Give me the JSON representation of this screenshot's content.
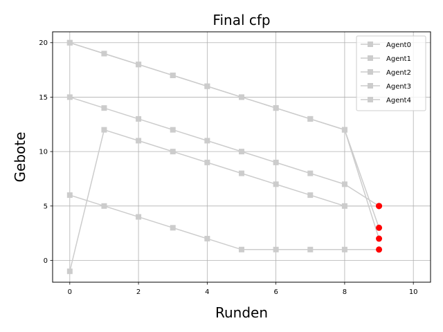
{
  "chart_data": {
    "type": "line",
    "title": "Final cfp",
    "xlabel": "Runden",
    "ylabel": "Gebote",
    "xlim": [
      -0.5,
      10.5
    ],
    "ylim": [
      -2,
      21
    ],
    "xticks": [
      0,
      2,
      4,
      6,
      8,
      10
    ],
    "yticks": [
      0,
      5,
      10,
      15,
      20
    ],
    "grid": true,
    "legend_position": "top-right",
    "line_color": "#cccccc",
    "final_marker_color": "#ff0000",
    "series": [
      {
        "name": "Agent0",
        "x": [
          0,
          1,
          2,
          3,
          4,
          5,
          6,
          7,
          8,
          9
        ],
        "y": [
          20,
          19,
          18,
          17,
          16,
          15,
          14,
          13,
          12,
          3
        ]
      },
      {
        "name": "Agent1",
        "x": [
          0,
          1,
          2,
          3,
          4,
          5,
          6,
          7,
          8,
          9
        ],
        "y": [
          20,
          19,
          18,
          17,
          16,
          15,
          14,
          13,
          12,
          2
        ]
      },
      {
        "name": "Agent2",
        "x": [
          0,
          1,
          2,
          3,
          4,
          5,
          6,
          7,
          8,
          9
        ],
        "y": [
          15,
          14,
          13,
          12,
          11,
          10,
          9,
          8,
          7,
          5
        ]
      },
      {
        "name": "Agent3",
        "x": [
          0,
          1,
          2,
          3,
          4,
          5,
          6,
          7,
          8,
          9
        ],
        "y": [
          -1,
          12,
          11,
          10,
          9,
          8,
          7,
          6,
          5,
          5
        ]
      },
      {
        "name": "Agent4",
        "x": [
          0,
          1,
          2,
          3,
          4,
          5,
          6,
          7,
          8,
          9
        ],
        "y": [
          6,
          5,
          4,
          3,
          2,
          1,
          1,
          1,
          1,
          1
        ]
      }
    ]
  }
}
